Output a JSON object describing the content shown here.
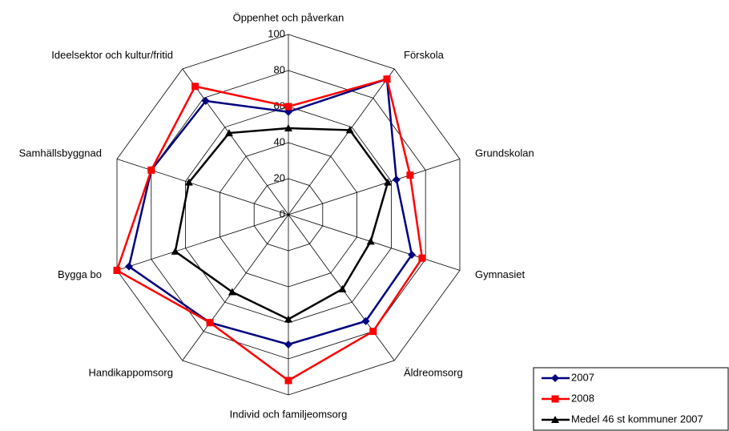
{
  "chart_data": {
    "type": "radar",
    "categories": [
      "Öppenhet och påverkan",
      "Förskola",
      "Grundskolan",
      "Gymnasiet",
      "Äldreomsorg",
      "Individ och familjeomsorg",
      "Handikappomsorg",
      "Bygga bo",
      "Samhällsbyggnad",
      "Ideelsektor och kultur/fritid"
    ],
    "series": [
      {
        "name": "2007",
        "color": "#000080",
        "marker": "diamond",
        "values": [
          57,
          93,
          63,
          72,
          73,
          72,
          74,
          93,
          80,
          78
        ]
      },
      {
        "name": "2008",
        "color": "#ff0000",
        "marker": "square",
        "values": [
          60,
          93,
          71,
          78,
          80,
          92,
          74,
          100,
          80,
          88
        ]
      },
      {
        "name": "Medel 46 st kommuner 2007",
        "color": "#000000",
        "marker": "triangle",
        "values": [
          48,
          58,
          58,
          48,
          51,
          58,
          53,
          66,
          58,
          56
        ]
      }
    ],
    "ylim": [
      0,
      100
    ],
    "yticks": [
      0,
      20,
      40,
      60,
      80,
      100
    ],
    "grid": true,
    "legend": "lower right"
  }
}
